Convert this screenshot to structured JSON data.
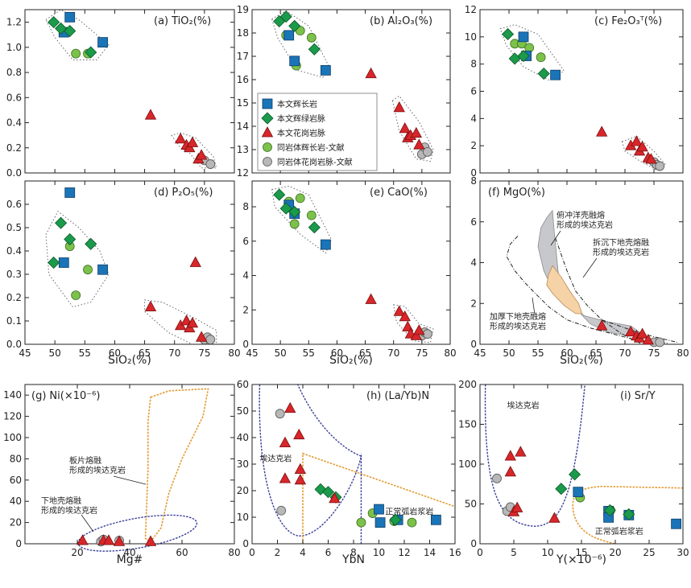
{
  "colors": {
    "dyke_fill": "#1a74b8",
    "dyke_edge": "#103f66",
    "diabase_fill": "#1a9a4a",
    "diabase_edge": "#0e5a2a",
    "granite_fill": "#d8262a",
    "granite_edge": "#7a1010",
    "pluton_gab_fill": "#7cc24a",
    "pluton_gab_edge": "#3c6e22",
    "pluton_gran_fill": "#b8b8b8",
    "pluton_gran_edge": "#555555",
    "blue_line": "#3a3f9a",
    "orange_line": "#e39a2f",
    "field_grey": "#c7c8cc",
    "field_orange": "#f6d3a7"
  },
  "legend": {
    "dyke": "本文辉长岩",
    "diabase": "本文辉绿岩脉",
    "granite": "本文花岗岩脉",
    "pluton_gab": "同岩体辉长岩-文献",
    "pluton_gran": "同岩体花岗岩脉-文献"
  },
  "chart_data": [
    {
      "type": "scatter",
      "id": "a",
      "title_label": "(a)",
      "title_text": "TiO₂(%)",
      "xlabel": "SiO₂(%)",
      "xlim": [
        45,
        80
      ],
      "ylim": [
        0,
        1.3
      ],
      "xticks": [],
      "yticks": [
        "0.0",
        "0.2",
        "0.4",
        "0.6",
        "0.8",
        "1.0",
        "1.2"
      ],
      "series": {
        "dyke": [
          [
            51.5,
            1.12
          ],
          [
            52.5,
            1.24
          ],
          [
            58,
            1.04
          ]
        ],
        "diabase": [
          [
            49.8,
            1.2
          ],
          [
            51,
            1.15
          ],
          [
            52.5,
            1.13
          ],
          [
            56,
            0.96
          ]
        ],
        "granite": [
          [
            66,
            0.46
          ],
          [
            71,
            0.27
          ],
          [
            72,
            0.22
          ],
          [
            72.5,
            0.2
          ],
          [
            73,
            0.24
          ],
          [
            74,
            0.11
          ],
          [
            74.5,
            0.14
          ]
        ],
        "pluton_gab": [
          [
            53.5,
            0.95
          ],
          [
            55.5,
            0.95
          ]
        ],
        "pluton_gran": [
          [
            75,
            0.1
          ],
          [
            76,
            0.07
          ]
        ]
      }
    },
    {
      "type": "scatter",
      "id": "b",
      "title_label": "(b)",
      "title_text": "Al₂O₃(%)",
      "xlabel": "SiO₂(%)",
      "xlim": [
        45,
        80
      ],
      "ylim": [
        12,
        19
      ],
      "xticks": [],
      "yticks": [
        "12",
        "13",
        "14",
        "15",
        "16",
        "17",
        "18",
        "19"
      ],
      "series": {
        "dyke": [
          [
            51.5,
            17.9
          ],
          [
            52.5,
            16.8
          ],
          [
            58,
            16.4
          ]
        ],
        "diabase": [
          [
            49.8,
            18.5
          ],
          [
            51,
            18.7
          ],
          [
            52.5,
            18.3
          ],
          [
            56,
            17.3
          ]
        ],
        "granite": [
          [
            66,
            16.25
          ],
          [
            71,
            14.8
          ],
          [
            72,
            13.9
          ],
          [
            72.5,
            13.5
          ],
          [
            73,
            13.6
          ],
          [
            74,
            13.7
          ],
          [
            74.5,
            13.2
          ]
        ],
        "pluton_gab": [
          [
            51,
            17.9
          ],
          [
            52.8,
            16.6
          ],
          [
            53.5,
            18.1
          ],
          [
            55.5,
            17.8
          ]
        ],
        "pluton_gran": [
          [
            75,
            12.8
          ],
          [
            75.5,
            13.1
          ],
          [
            76,
            12.9
          ]
        ]
      }
    },
    {
      "type": "scatter",
      "id": "c",
      "title_label": "(c)",
      "title_text": "Fe₂O₃ᵀ(%)",
      "xlabel": "SiO₂(%)",
      "xlim": [
        45,
        80
      ],
      "ylim": [
        0,
        12
      ],
      "xticks": [],
      "yticks": [
        "0",
        "2",
        "4",
        "6",
        "8",
        "10",
        "12"
      ],
      "series": {
        "dyke": [
          [
            52.5,
            10
          ],
          [
            53,
            8.6
          ],
          [
            58,
            7.2
          ]
        ],
        "diabase": [
          [
            49.8,
            10.2
          ],
          [
            51,
            8.4
          ],
          [
            52.5,
            8.6
          ],
          [
            56,
            7.3
          ]
        ],
        "granite": [
          [
            66,
            3
          ],
          [
            71,
            2
          ],
          [
            72,
            2.3
          ],
          [
            72.5,
            1.6
          ],
          [
            73,
            1.9
          ],
          [
            74,
            1.1
          ],
          [
            74.5,
            1
          ]
        ],
        "pluton_gab": [
          [
            51,
            9.5
          ],
          [
            52.2,
            9.5
          ],
          [
            53.5,
            9.2
          ],
          [
            55.5,
            8.5
          ]
        ],
        "pluton_gran": [
          [
            75,
            0.8
          ],
          [
            75.5,
            0.6
          ],
          [
            76,
            0.5
          ]
        ]
      }
    },
    {
      "type": "scatter",
      "id": "d",
      "title_label": "(d)",
      "title_text": "P₂O₅(%)",
      "xlabel": "SiO₂(%)",
      "xlim": [
        45,
        80
      ],
      "ylim": [
        0,
        0.7
      ],
      "xticks": [
        "45",
        "50",
        "55",
        "60",
        "65",
        "70",
        "75",
        "80"
      ],
      "yticks": [
        "0.0",
        "0.1",
        "0.2",
        "0.3",
        "0.4",
        "0.5",
        "0.6"
      ],
      "series": {
        "dyke": [
          [
            52.5,
            0.65
          ],
          [
            51.5,
            0.35
          ],
          [
            58,
            0.32
          ]
        ],
        "diabase": [
          [
            49.8,
            0.35
          ],
          [
            51,
            0.52
          ],
          [
            52.5,
            0.45
          ],
          [
            56,
            0.43
          ]
        ],
        "granite": [
          [
            66,
            0.16
          ],
          [
            71,
            0.08
          ],
          [
            72,
            0.1
          ],
          [
            72.5,
            0.07
          ],
          [
            73,
            0.09
          ],
          [
            73.5,
            0.35
          ],
          [
            74.5,
            0.03
          ]
        ],
        "pluton_gab": [
          [
            52.5,
            0.42
          ],
          [
            53.5,
            0.21
          ],
          [
            55.5,
            0.32
          ]
        ],
        "pluton_gran": [
          [
            75,
            0.02
          ],
          [
            75.5,
            0.03
          ],
          [
            76,
            0.02
          ]
        ]
      }
    },
    {
      "type": "scatter",
      "id": "e",
      "title_label": "(e)",
      "title_text": "CaO(%)",
      "xlabel": "SiO₂(%)",
      "xlim": [
        45,
        80
      ],
      "ylim": [
        0,
        9.5
      ],
      "xticks": [
        "45",
        "50",
        "55",
        "60",
        "65",
        "70",
        "75",
        "80"
      ],
      "yticks": [
        "0",
        "2",
        "4",
        "6",
        "8"
      ],
      "series": {
        "dyke": [
          [
            51.5,
            8.1
          ],
          [
            52.5,
            7.6
          ],
          [
            58,
            5.8
          ]
        ],
        "diabase": [
          [
            49.8,
            8.7
          ],
          [
            51,
            7.9
          ],
          [
            52.5,
            7.7
          ],
          [
            56,
            6.8
          ]
        ],
        "granite": [
          [
            66,
            2.6
          ],
          [
            71,
            1.9
          ],
          [
            72,
            1.6
          ],
          [
            72.5,
            1
          ],
          [
            73,
            0.6
          ],
          [
            74,
            0.5
          ],
          [
            74.5,
            0.8
          ]
        ],
        "pluton_gab": [
          [
            51.5,
            8.3
          ],
          [
            52.5,
            7
          ],
          [
            53.5,
            8.5
          ],
          [
            55.5,
            7.5
          ]
        ],
        "pluton_gran": [
          [
            75,
            0.5
          ],
          [
            75.5,
            0.7
          ],
          [
            76,
            0.6
          ]
        ]
      }
    },
    {
      "type": "scatter",
      "id": "f",
      "title_label": "(f)",
      "title_text": "MgO(%)",
      "xlabel": "SiO₂(%)",
      "xlim": [
        45,
        80
      ],
      "ylim": [
        0,
        8
      ],
      "xticks": [
        "45",
        "50",
        "55",
        "60",
        "65",
        "70",
        "75",
        "80"
      ],
      "yticks": [
        "0",
        "2",
        "4",
        "6",
        "8"
      ],
      "series": {
        "dyke": [],
        "diabase": [],
        "granite": [
          [
            66,
            0.9
          ],
          [
            71,
            0.6
          ],
          [
            72,
            0.4
          ],
          [
            72.5,
            0.3
          ],
          [
            73,
            0.5
          ],
          [
            74,
            0.2
          ]
        ],
        "pluton_gab": [],
        "pluton_gran": [
          [
            75,
            0.1
          ],
          [
            76,
            0.1
          ]
        ]
      },
      "annotations": {
        "oceanic": [
          "俯冲洋壳融熔",
          "形成的埃达克岩"
        ],
        "delaminated": [
          "拆沉下地壳熔融",
          "形成的埃达克岩"
        ],
        "thickened": [
          "加厚下地壳融熔",
          "形成的埃达克岩"
        ]
      }
    },
    {
      "type": "scatter",
      "id": "g",
      "title_label": "(g)",
      "title_text": "Ni(×10⁻⁶)",
      "xlabel": "Mg#",
      "xlim": [
        0,
        80
      ],
      "ylim": [
        0,
        150
      ],
      "xticks": [
        "20",
        "40",
        "60",
        "80"
      ],
      "yticks": [
        "0",
        "20",
        "40",
        "60",
        "80",
        "100",
        "120",
        "140"
      ],
      "series": {
        "dyke": [],
        "diabase": [],
        "granite": [
          [
            22,
            3
          ],
          [
            30,
            3
          ],
          [
            32,
            3
          ],
          [
            36,
            2
          ],
          [
            48,
            2
          ]
        ],
        "pluton_gab": [],
        "pluton_gran": [
          [
            29,
            2
          ],
          [
            30,
            4
          ],
          [
            36,
            3
          ]
        ]
      },
      "annotations": {
        "slab": [
          "板片熔融",
          "形成的埃达克岩"
        ],
        "lowercrust": [
          "下地壳熔融",
          "形成的埃达克岩"
        ]
      }
    },
    {
      "type": "scatter",
      "id": "h",
      "title_label": "(h)",
      "title_text": "(La/Yb)N",
      "xlabel": "YbN",
      "xlim": [
        0,
        16
      ],
      "ylim": [
        0,
        60
      ],
      "xticks": [
        "0",
        "2",
        "4",
        "6",
        "8",
        "10",
        "12",
        "14",
        "16"
      ],
      "yticks": [
        "0",
        "10",
        "20",
        "30",
        "40",
        "50",
        "60"
      ],
      "series": {
        "dyke": [
          [
            10,
            13
          ],
          [
            10.1,
            8
          ],
          [
            11.5,
            9
          ],
          [
            14.5,
            9
          ]
        ],
        "diabase": [
          [
            5.4,
            20.5
          ],
          [
            6,
            19.5
          ],
          [
            6.6,
            17.5
          ],
          [
            11.3,
            9
          ]
        ],
        "granite": [
          [
            2.6,
            38
          ],
          [
            3,
            51
          ],
          [
            3.7,
            41
          ],
          [
            3.8,
            28
          ],
          [
            3.8,
            24
          ],
          [
            2.6,
            24.5
          ],
          [
            6.5,
            17
          ]
        ],
        "pluton_gab": [
          [
            8.6,
            8
          ],
          [
            9.5,
            11.5
          ],
          [
            11.2,
            8.5
          ],
          [
            12.6,
            8
          ]
        ],
        "pluton_gran": [
          [
            2.2,
            49
          ],
          [
            2.3,
            12.5
          ]
        ]
      },
      "annotations": {
        "adakite": "埃达克岩",
        "arc": "正常弧岩浆岩"
      }
    },
    {
      "type": "scatter",
      "id": "i",
      "title_label": "(i)",
      "title_text": "Sr/Y",
      "xlabel": "Y(×10⁻⁶)",
      "xlim": [
        0,
        30
      ],
      "ylim": [
        0,
        200
      ],
      "xticks": [
        "0",
        "5",
        "10",
        "15",
        "20",
        "25",
        "30"
      ],
      "yticks": [
        "0",
        "50",
        "100",
        "150",
        "200"
      ],
      "series": {
        "dyke": [
          [
            14.5,
            65
          ],
          [
            19,
            41
          ],
          [
            19,
            33
          ],
          [
            22,
            36
          ],
          [
            29,
            25
          ]
        ],
        "diabase": [
          [
            12,
            69
          ],
          [
            14,
            87
          ],
          [
            19.2,
            42
          ],
          [
            22,
            37
          ]
        ],
        "granite": [
          [
            4.5,
            110
          ],
          [
            4.5,
            90
          ],
          [
            5,
            40
          ],
          [
            5.5,
            45
          ],
          [
            6,
            115
          ],
          [
            11,
            32
          ]
        ],
        "pluton_gab": [
          [
            14.8,
            58
          ],
          [
            19.3,
            42
          ]
        ],
        "pluton_gran": [
          [
            2.5,
            82
          ],
          [
            4,
            41
          ],
          [
            4.5,
            46
          ]
        ]
      },
      "annotations": {
        "adakite": "埃达克岩",
        "arc": "正常弧岩浆岩"
      }
    }
  ],
  "axis_titles": {
    "row1_x": "SiO₂(%)",
    "row2_x": "SiO₂(%)",
    "row3_x_g": "Mg#",
    "row3_x_h": "YbN",
    "row3_x_i": "Y(×10⁻⁶)"
  }
}
